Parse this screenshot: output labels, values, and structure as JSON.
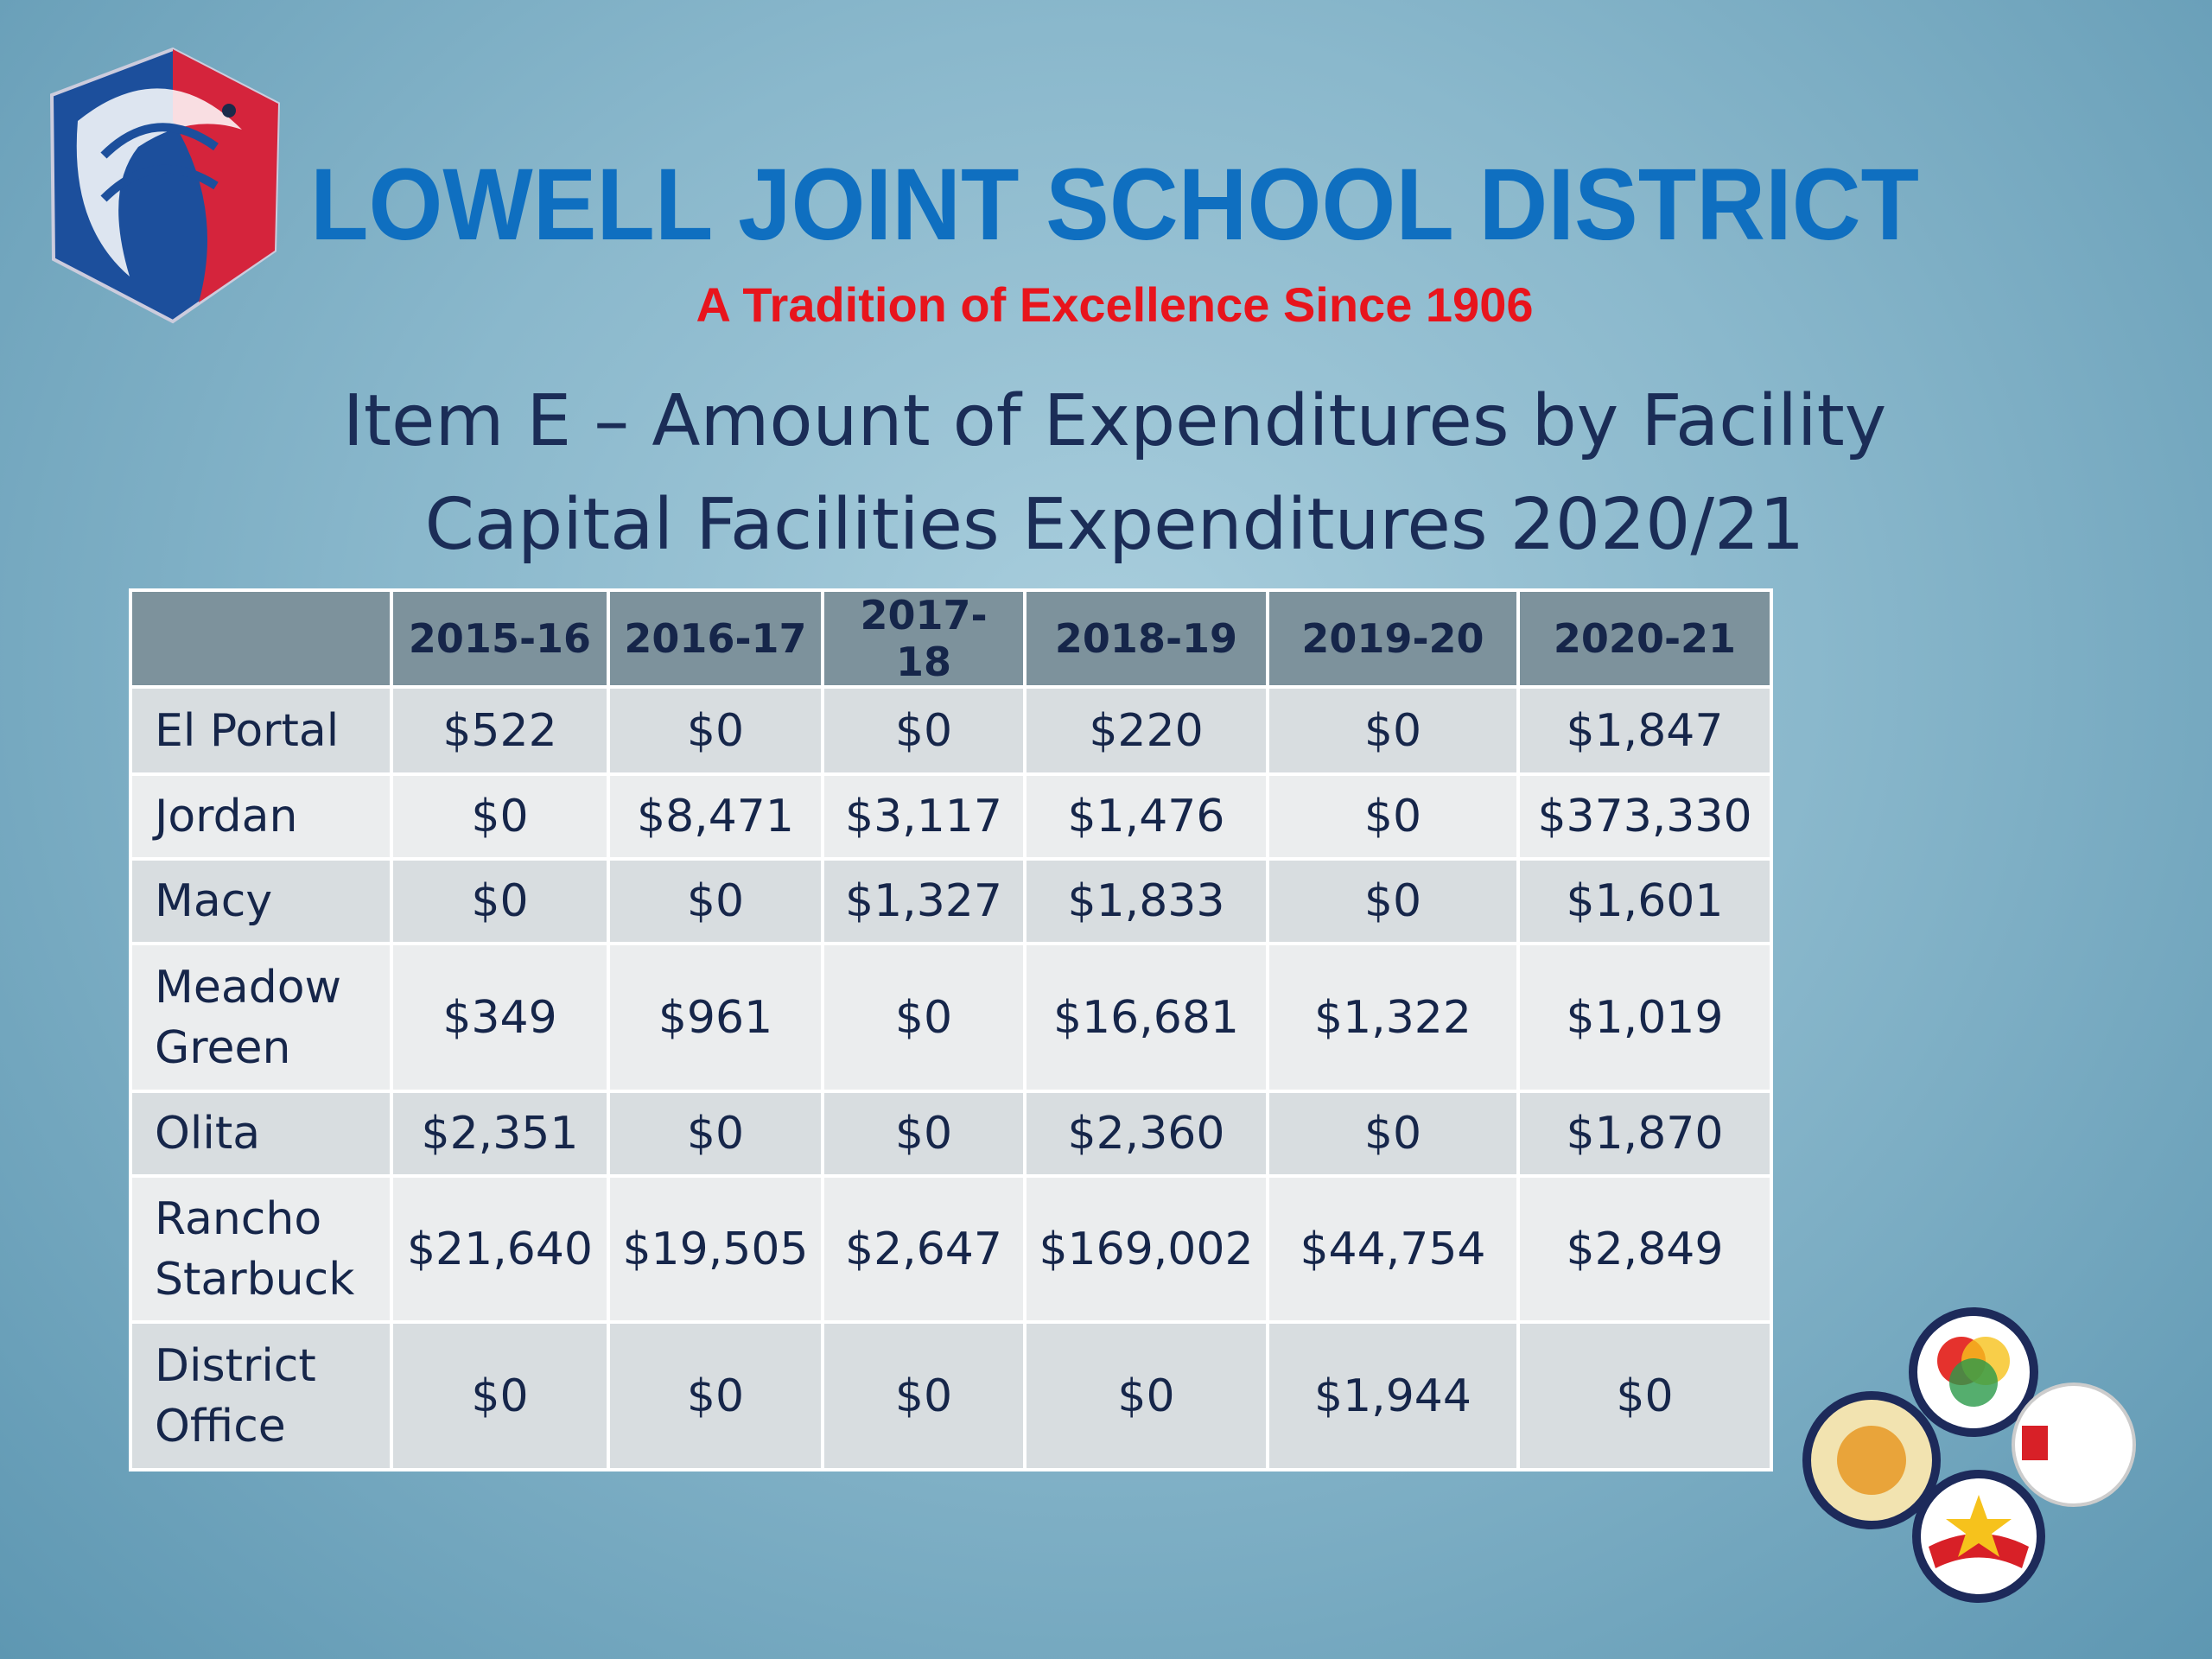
{
  "header": {
    "title": "LOWELL JOINT SCHOOL  DISTRICT",
    "tagline": "A Tradition of Excellence Since 1906"
  },
  "slide": {
    "title_lines": [
      "Item E – Amount of Expenditures by Facility",
      "Capital Facilities Expenditures 2020/21"
    ]
  },
  "table": {
    "columns": [
      "2015-16",
      "2016-17",
      "2017-18",
      "2018-19",
      "2019-20",
      "2020-21"
    ],
    "rows": [
      {
        "label": "El Portal",
        "values": [
          "$522",
          "$0",
          "$0",
          "$220",
          "$0",
          "$1,847"
        ]
      },
      {
        "label": "Jordan",
        "values": [
          "$0",
          "$8,471",
          "$3,117",
          "$1,476",
          "$0",
          "$373,330"
        ]
      },
      {
        "label": "Macy",
        "values": [
          "$0",
          "$0",
          "$1,327",
          "$1,833",
          "$0",
          "$1,601"
        ]
      },
      {
        "label": "Meadow Green",
        "values": [
          "$349",
          "$961",
          "$0",
          "$16,681",
          "$1,322",
          "$1,019"
        ]
      },
      {
        "label": "Olita",
        "values": [
          "$2,351",
          "$0",
          "$0",
          "$2,360",
          "$0",
          "$1,870"
        ]
      },
      {
        "label": "Rancho Starbuck",
        "values": [
          "$21,640",
          "$19,505",
          "$2,647",
          "$169,002",
          "$44,754",
          "$2,849"
        ]
      },
      {
        "label": "District Office",
        "values": [
          "$0",
          "$0",
          "$0",
          "$0",
          "$1,944",
          "$0"
        ]
      }
    ]
  }
}
